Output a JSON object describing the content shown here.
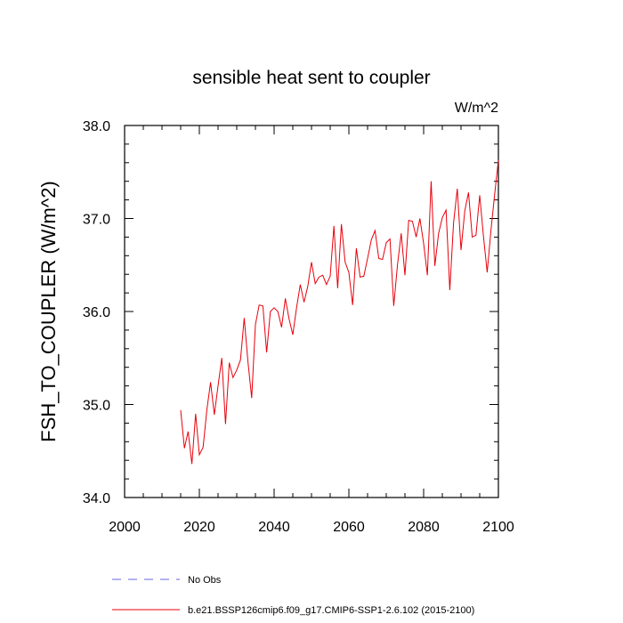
{
  "chart_data": {
    "type": "line",
    "title": "sensible heat sent to coupler",
    "units_label": "W/m^2",
    "ylabel": "FSH_TO_COUPLER  (W/m^2)",
    "xlabel": "",
    "xlim": [
      2000,
      2100
    ],
    "ylim": [
      34.0,
      38.0
    ],
    "x_ticks": [
      2000,
      2020,
      2040,
      2060,
      2080,
      2100
    ],
    "x_tick_labels": [
      "2000",
      "2020",
      "2040",
      "2060",
      "2080",
      "2100"
    ],
    "y_ticks": [
      34.0,
      35.0,
      36.0,
      37.0,
      38.0
    ],
    "y_tick_labels": [
      "34.0",
      "35.0",
      "36.0",
      "37.0",
      "38.0"
    ],
    "grid": false,
    "legend_position": "bottom",
    "series": [
      {
        "name": "b.e21.BSSP126cmip6.f09_g17.CMIP6-SSP1-2.6.102 (2015-2100)",
        "color": "#e8000b",
        "style": "solid",
        "x": [
          2015,
          2016,
          2017,
          2018,
          2019,
          2020,
          2021,
          2022,
          2023,
          2024,
          2025,
          2026,
          2027,
          2028,
          2029,
          2030,
          2031,
          2032,
          2033,
          2034,
          2035,
          2036,
          2037,
          2038,
          2039,
          2040,
          2041,
          2042,
          2043,
          2044,
          2045,
          2046,
          2047,
          2048,
          2049,
          2050,
          2051,
          2052,
          2053,
          2054,
          2055,
          2056,
          2057,
          2058,
          2059,
          2060,
          2061,
          2062,
          2063,
          2064,
          2065,
          2066,
          2067,
          2068,
          2069,
          2070,
          2071,
          2072,
          2073,
          2074,
          2075,
          2076,
          2077,
          2078,
          2079,
          2080,
          2081,
          2082,
          2083,
          2084,
          2085,
          2086,
          2087,
          2088,
          2089,
          2090,
          2091,
          2092,
          2093,
          2094,
          2095,
          2096,
          2097,
          2098,
          2099,
          2100
        ],
        "y": [
          34.94,
          34.53,
          34.71,
          34.36,
          34.9,
          34.46,
          34.54,
          34.94,
          35.24,
          34.89,
          35.2,
          35.5,
          34.79,
          35.45,
          35.29,
          35.37,
          35.48,
          35.93,
          35.46,
          35.07,
          35.86,
          36.07,
          36.06,
          35.56,
          36.0,
          36.04,
          36.0,
          35.83,
          36.14,
          35.92,
          35.75,
          36.04,
          36.29,
          36.1,
          36.27,
          36.53,
          36.3,
          36.37,
          36.39,
          36.29,
          36.38,
          36.92,
          36.25,
          36.94,
          36.53,
          36.42,
          36.07,
          36.68,
          36.37,
          36.38,
          36.57,
          36.77,
          36.87,
          36.57,
          36.56,
          36.74,
          36.78,
          36.06,
          36.5,
          36.84,
          36.39,
          36.98,
          36.97,
          36.8,
          37.0,
          36.73,
          36.39,
          37.4,
          36.49,
          36.84,
          37.01,
          37.09,
          36.23,
          36.95,
          37.32,
          36.66,
          37.08,
          37.28,
          36.8,
          36.82,
          37.25,
          36.81,
          36.42,
          36.87,
          37.26,
          37.63
        ]
      },
      {
        "name": "No Obs",
        "color": "#6464e6",
        "style": "dashed",
        "x": [],
        "y": []
      }
    ]
  }
}
